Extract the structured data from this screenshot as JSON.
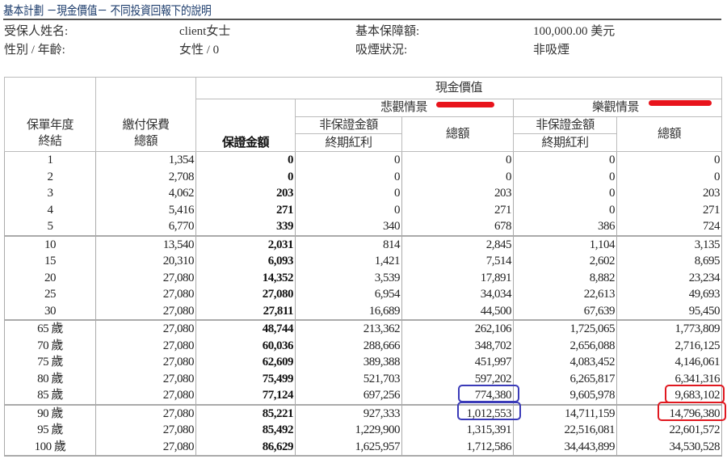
{
  "title": "基本計劃 －現金價值－ 不同投資回報下的說明",
  "info": {
    "insured_label": "受保人姓名:",
    "insured_value": "client女士",
    "sum_label": "基本保障額:",
    "sum_value": "100,000.00 美元",
    "gender_label": "性別 / 年齡:",
    "gender_value": "女性 / 0",
    "smoke_label": "吸煙狀況:",
    "smoke_value": "非吸煙"
  },
  "table": {
    "headers": {
      "year": [
        "保單年度",
        "終結"
      ],
      "premium": [
        "繳付保費",
        "總額"
      ],
      "cash_value": "現金價值",
      "guaranteed": "保證金額",
      "pessimistic": "悲觀情景",
      "optimistic": "樂觀情景",
      "non_guaranteed": "非保證金額",
      "terminal_bonus": "終期紅利",
      "total": "總額"
    },
    "rows": [
      [
        "1",
        "1,354",
        "0",
        "0",
        "0",
        "0",
        "0"
      ],
      [
        "2",
        "2,708",
        "0",
        "0",
        "0",
        "0",
        "0"
      ],
      [
        "3",
        "4,062",
        "203",
        "0",
        "203",
        "0",
        "203"
      ],
      [
        "4",
        "5,416",
        "271",
        "0",
        "271",
        "0",
        "271"
      ],
      [
        "5",
        "6,770",
        "339",
        "340",
        "678",
        "386",
        "724"
      ],
      [
        "10",
        "13,540",
        "2,031",
        "814",
        "2,845",
        "1,104",
        "3,135"
      ],
      [
        "15",
        "20,310",
        "6,093",
        "1,421",
        "7,514",
        "2,602",
        "8,695"
      ],
      [
        "20",
        "27,080",
        "14,352",
        "3,539",
        "17,891",
        "8,882",
        "23,234"
      ],
      [
        "25",
        "27,080",
        "27,080",
        "6,954",
        "34,034",
        "22,613",
        "49,693"
      ],
      [
        "30",
        "27,080",
        "27,811",
        "16,689",
        "44,500",
        "67,639",
        "95,450"
      ],
      [
        "65 歲",
        "27,080",
        "48,744",
        "213,362",
        "262,106",
        "1,725,065",
        "1,773,809"
      ],
      [
        "70 歲",
        "27,080",
        "60,036",
        "288,666",
        "348,702",
        "2,656,088",
        "2,716,125"
      ],
      [
        "75 歲",
        "27,080",
        "62,609",
        "389,388",
        "451,997",
        "4,083,452",
        "4,146,061"
      ],
      [
        "80 歲",
        "27,080",
        "75,499",
        "521,703",
        "597,202",
        "6,265,817",
        "6,341,316"
      ],
      [
        "85 歲",
        "27,080",
        "77,124",
        "697,256",
        "774,380",
        "9,605,978",
        "9,683,102"
      ],
      [
        "90 歲",
        "27,080",
        "85,221",
        "927,333",
        "1,012,553",
        "14,711,159",
        "14,796,380"
      ],
      [
        "95 歲",
        "27,080",
        "85,492",
        "1,229,900",
        "1,315,391",
        "22,516,081",
        "22,601,572"
      ],
      [
        "100 歲",
        "27,080",
        "86,629",
        "1,625,957",
        "1,712,586",
        "34,443,899",
        "34,530,528"
      ]
    ]
  },
  "annotation_colors": {
    "blue": "#3a3ab8",
    "red": "#e01820"
  }
}
